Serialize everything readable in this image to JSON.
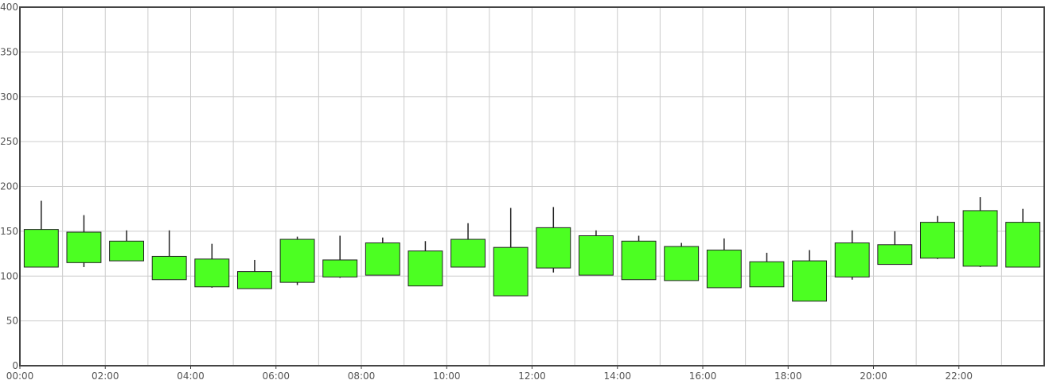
{
  "chart_data": {
    "type": "candlestick",
    "title": "",
    "xlabel": "",
    "ylabel": "",
    "ylim": [
      0,
      400
    ],
    "yticks": [
      0,
      50,
      100,
      150,
      200,
      250,
      300,
      350,
      400
    ],
    "xlim_hours": [
      0,
      24
    ],
    "xticks": [
      "00:00",
      "02:00",
      "04:00",
      "06:00",
      "08:00",
      "10:00",
      "12:00",
      "14:00",
      "16:00",
      "18:00",
      "20:00",
      "22:00"
    ],
    "grid": true,
    "legend": "none",
    "colors": {
      "candle_fill": "#4cff22",
      "candle_stroke": "#222222",
      "grid": "#cccccc",
      "frame": "#444444"
    },
    "candles": [
      {
        "time": "00:00",
        "low": 110,
        "high": 184,
        "box_low": 110,
        "box_high": 152
      },
      {
        "time": "01:00",
        "low": 110,
        "high": 168,
        "box_low": 115,
        "box_high": 149
      },
      {
        "time": "02:00",
        "low": 117,
        "high": 151,
        "box_low": 117,
        "box_high": 139
      },
      {
        "time": "03:00",
        "low": 96,
        "high": 151,
        "box_low": 96,
        "box_high": 122
      },
      {
        "time": "04:00",
        "low": 87,
        "high": 136,
        "box_low": 88,
        "box_high": 119
      },
      {
        "time": "05:00",
        "low": 86,
        "high": 118,
        "box_low": 86,
        "box_high": 105
      },
      {
        "time": "06:00",
        "low": 90,
        "high": 144,
        "box_low": 93,
        "box_high": 141
      },
      {
        "time": "07:00",
        "low": 98,
        "high": 145,
        "box_low": 99,
        "box_high": 118
      },
      {
        "time": "08:00",
        "low": 101,
        "high": 143,
        "box_low": 101,
        "box_high": 137
      },
      {
        "time": "09:00",
        "low": 89,
        "high": 139,
        "box_low": 89,
        "box_high": 128
      },
      {
        "time": "10:00",
        "low": 110,
        "high": 159,
        "box_low": 110,
        "box_high": 141
      },
      {
        "time": "11:00",
        "low": 78,
        "high": 176,
        "box_low": 78,
        "box_high": 132
      },
      {
        "time": "12:00",
        "low": 104,
        "high": 177,
        "box_low": 109,
        "box_high": 154
      },
      {
        "time": "13:00",
        "low": 101,
        "high": 151,
        "box_low": 101,
        "box_high": 145
      },
      {
        "time": "14:00",
        "low": 96,
        "high": 145,
        "box_low": 96,
        "box_high": 139
      },
      {
        "time": "15:00",
        "low": 95,
        "high": 137,
        "box_low": 95,
        "box_high": 133
      },
      {
        "time": "16:00",
        "low": 87,
        "high": 142,
        "box_low": 87,
        "box_high": 129
      },
      {
        "time": "17:00",
        "low": 88,
        "high": 126,
        "box_low": 88,
        "box_high": 116
      },
      {
        "time": "18:00",
        "low": 72,
        "high": 129,
        "box_low": 72,
        "box_high": 117
      },
      {
        "time": "19:00",
        "low": 96,
        "high": 151,
        "box_low": 99,
        "box_high": 137
      },
      {
        "time": "20:00",
        "low": 113,
        "high": 150,
        "box_low": 113,
        "box_high": 135
      },
      {
        "time": "21:00",
        "low": 119,
        "high": 167,
        "box_low": 120,
        "box_high": 160
      },
      {
        "time": "22:00",
        "low": 110,
        "high": 188,
        "box_low": 111,
        "box_high": 173
      },
      {
        "time": "23:00",
        "low": 110,
        "high": 175,
        "box_low": 110,
        "box_high": 160
      }
    ]
  }
}
